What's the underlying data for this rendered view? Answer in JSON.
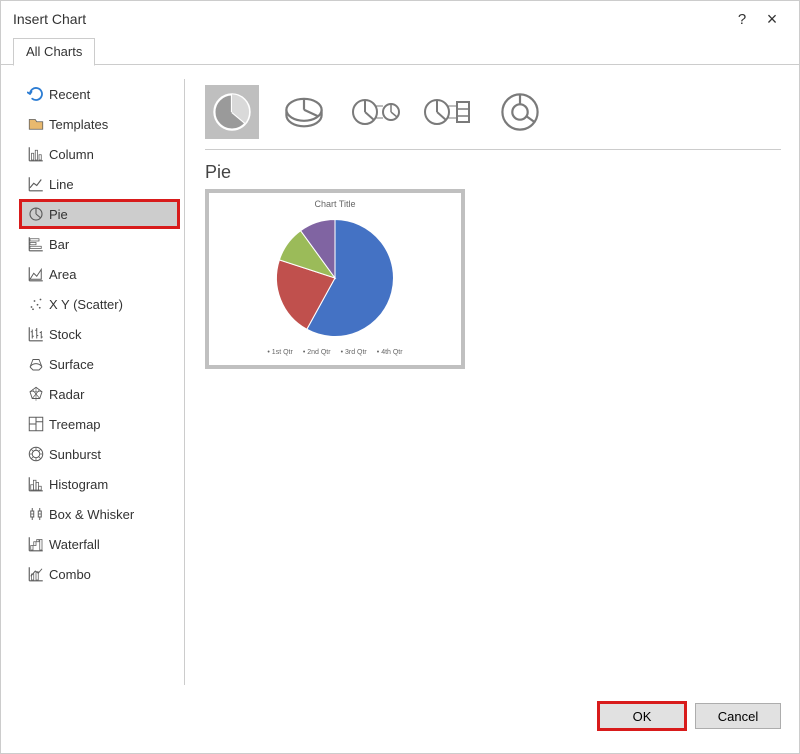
{
  "dialog": {
    "title": "Insert Chart",
    "help_symbol": "?",
    "close_symbol": "×"
  },
  "tab": {
    "label": "All Charts"
  },
  "sidebar": {
    "items": [
      {
        "label": "Recent",
        "icon": "recent-icon"
      },
      {
        "label": "Templates",
        "icon": "templates-icon"
      },
      {
        "label": "Column",
        "icon": "column-icon"
      },
      {
        "label": "Line",
        "icon": "line-icon"
      },
      {
        "label": "Pie",
        "icon": "pie-icon",
        "selected": true
      },
      {
        "label": "Bar",
        "icon": "bar-icon"
      },
      {
        "label": "Area",
        "icon": "area-icon"
      },
      {
        "label": "X Y (Scatter)",
        "icon": "scatter-icon"
      },
      {
        "label": "Stock",
        "icon": "stock-icon"
      },
      {
        "label": "Surface",
        "icon": "surface-icon"
      },
      {
        "label": "Radar",
        "icon": "radar-icon"
      },
      {
        "label": "Treemap",
        "icon": "treemap-icon"
      },
      {
        "label": "Sunburst",
        "icon": "sunburst-icon"
      },
      {
        "label": "Histogram",
        "icon": "histogram-icon"
      },
      {
        "label": "Box & Whisker",
        "icon": "box-whisker-icon"
      },
      {
        "label": "Waterfall",
        "icon": "waterfall-icon"
      },
      {
        "label": "Combo",
        "icon": "combo-icon"
      }
    ]
  },
  "subtypes": [
    {
      "name": "pie-2d",
      "selected": true
    },
    {
      "name": "pie-3d"
    },
    {
      "name": "pie-of-pie"
    },
    {
      "name": "bar-of-pie"
    },
    {
      "name": "doughnut"
    }
  ],
  "selected_chart": {
    "title": "Pie",
    "preview": {
      "title": "Chart Title",
      "type": "pie",
      "slices": [
        {
          "label": "1st Qtr",
          "value": 58,
          "color": "#4472c4"
        },
        {
          "label": "2nd Qtr",
          "value": 22,
          "color": "#c0504d"
        },
        {
          "label": "3rd Qtr",
          "value": 10,
          "color": "#9bbb59"
        },
        {
          "label": "4th Qtr",
          "value": 10,
          "color": "#8064a2"
        }
      ],
      "background_color": "#ffffff",
      "title_fontsize": 9,
      "legend_fontsize": 7
    }
  },
  "buttons": {
    "ok": "OK",
    "cancel": "Cancel"
  },
  "colors": {
    "icon_stroke": "#5a5a5a",
    "recent_blue": "#2b7cd3",
    "templates_fill": "#e8b96f",
    "highlight_red": "#d81b1b"
  }
}
